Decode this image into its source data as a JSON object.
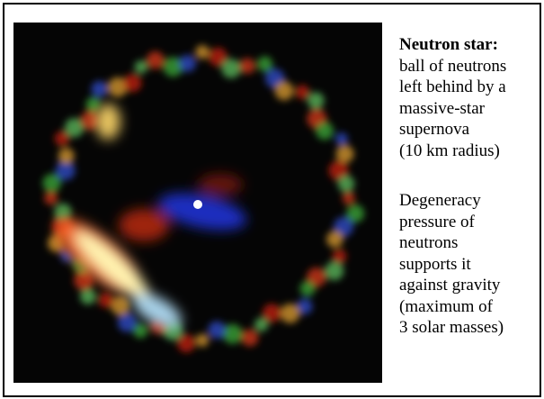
{
  "term": "Neutron star:",
  "definition_lines": [
    "ball of neutrons",
    "left behind by a",
    "massive-star",
    "supernova",
    "(10 km radius)"
  ],
  "note_lines": [
    "Degeneracy",
    "pressure of",
    "neutrons",
    "supports it",
    "against gravity",
    "(maximum of",
    "3 solar masses)"
  ]
}
